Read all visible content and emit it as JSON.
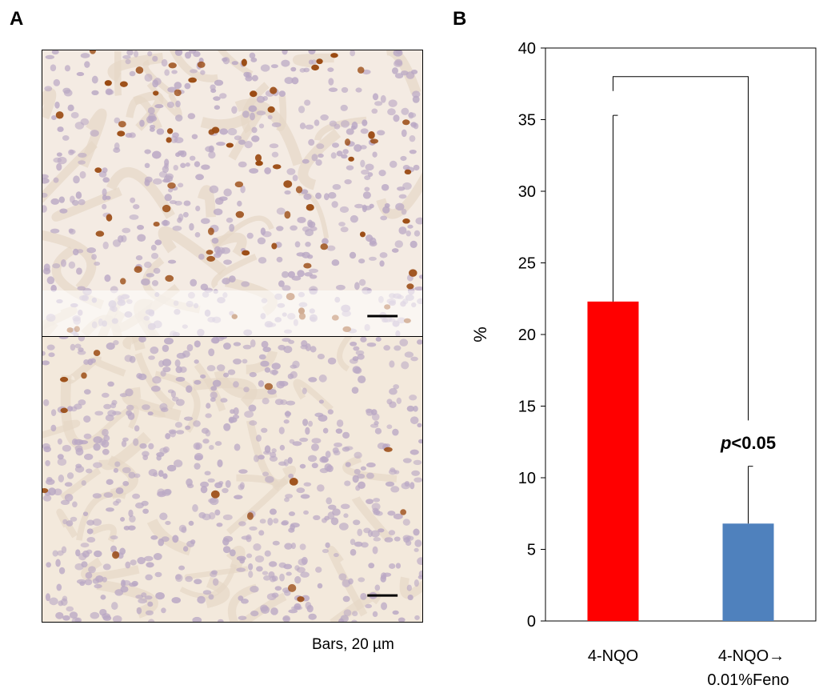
{
  "panels": {
    "a_label": "A",
    "b_label": "B",
    "scale_caption": "Bars, 20 µm"
  },
  "images": {
    "top": {
      "description_icon": "ihc-high-staining-micrograph"
    },
    "bottom": {
      "description_icon": "ihc-low-staining-micrograph"
    }
  },
  "colors": {
    "bar1": "#ff0000",
    "bar2": "#4f81bd",
    "tissue_bg": "#f3e9dc",
    "nucleus_pale": "#b9a7c4",
    "nucleus_stained": "#9a4a12"
  },
  "chart_data": {
    "type": "bar",
    "categories": [
      "4-NQO",
      "4-NQO→ 0.01%Feno"
    ],
    "category_lines": [
      [
        "4-NQO"
      ],
      [
        "4-NQO→",
        "0.01%Feno"
      ]
    ],
    "values": [
      22.3,
      6.8
    ],
    "error_upper": [
      35.3,
      10.8
    ],
    "bar_colors": [
      "#ff0000",
      "#4f81bd"
    ],
    "ylabel": "%",
    "ylim": [
      0,
      40
    ],
    "yticks": [
      0,
      5,
      10,
      15,
      20,
      25,
      30,
      35,
      40
    ],
    "significance": {
      "bracket_top": 38.0,
      "left_end": 37.0,
      "right_end": 14.0,
      "p_symbol": "p",
      "p_rest": "<0.05"
    },
    "grid": false,
    "legend": "none"
  }
}
